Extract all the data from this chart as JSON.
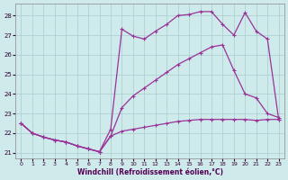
{
  "xlabel": "Windchill (Refroidissement éolien,°C)",
  "background_color": "#ceeaea",
  "grid_color": "#aacccc",
  "line_color": "#993399",
  "xlim": [
    -0.5,
    23.5
  ],
  "ylim": [
    20.7,
    28.6
  ],
  "yticks": [
    21,
    22,
    23,
    24,
    25,
    26,
    27,
    28
  ],
  "xticks": [
    0,
    1,
    2,
    3,
    4,
    5,
    6,
    7,
    8,
    9,
    10,
    11,
    12,
    13,
    14,
    15,
    16,
    17,
    18,
    19,
    20,
    21,
    22,
    23
  ],
  "line_bottom_x": [
    0,
    1,
    2,
    3,
    4,
    5,
    6,
    7,
    8,
    9,
    10,
    11,
    12,
    13,
    14,
    15,
    16,
    17,
    18,
    19,
    20,
    21,
    22,
    23
  ],
  "line_bottom_y": [
    22.5,
    22.0,
    21.8,
    21.65,
    21.55,
    21.35,
    21.2,
    21.05,
    21.85,
    22.1,
    22.2,
    22.3,
    22.4,
    22.5,
    22.6,
    22.65,
    22.7,
    22.7,
    22.7,
    22.7,
    22.7,
    22.65,
    22.7,
    22.7
  ],
  "line_mid_x": [
    0,
    1,
    2,
    3,
    4,
    5,
    6,
    7,
    8,
    9,
    10,
    11,
    12,
    13,
    14,
    15,
    16,
    17,
    18,
    19,
    20,
    21,
    22,
    23
  ],
  "line_mid_y": [
    22.5,
    22.0,
    21.8,
    21.65,
    21.55,
    21.35,
    21.2,
    21.05,
    21.85,
    23.3,
    23.9,
    24.3,
    24.7,
    25.1,
    25.5,
    25.8,
    26.1,
    26.4,
    26.5,
    25.2,
    24.0,
    23.8,
    23.0,
    22.8
  ],
  "line_top_x": [
    0,
    1,
    2,
    3,
    4,
    5,
    6,
    7,
    8,
    9,
    10,
    11,
    12,
    13,
    14,
    15,
    16,
    17,
    18,
    19,
    20,
    21,
    22,
    23
  ],
  "line_top_y": [
    22.5,
    22.0,
    21.8,
    21.65,
    21.55,
    21.35,
    21.2,
    21.05,
    22.2,
    27.3,
    26.95,
    26.8,
    27.2,
    27.55,
    28.0,
    28.05,
    28.2,
    28.2,
    27.55,
    27.0,
    28.15,
    27.2,
    26.8,
    22.7
  ]
}
